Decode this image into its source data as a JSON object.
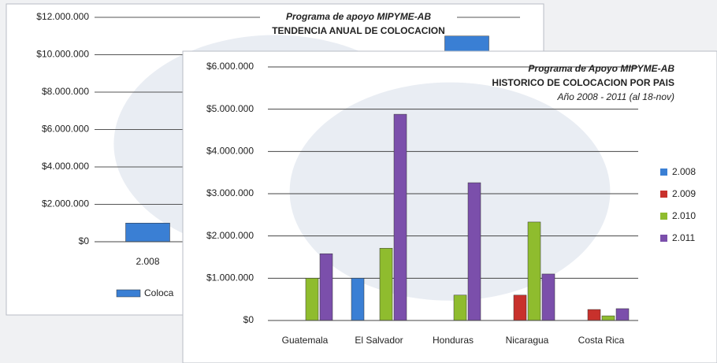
{
  "chart_data": [
    {
      "type": "bar",
      "title": "Programa de apoyo MIPYME-AB",
      "subtitle": "TENDENCIA ANUAL DE COLOCACION",
      "categories": [
        "2.008",
        null,
        null,
        null
      ],
      "series": [
        {
          "name": "Coloca",
          "color": "#3a7fd4",
          "values": [
            1000000,
            null,
            null,
            11000000
          ]
        }
      ],
      "ylim": [
        0,
        12000000
      ],
      "yticks": [
        {
          "value": 0,
          "label": "$0"
        },
        {
          "value": 2000000,
          "label": "$2.000.000"
        },
        {
          "value": 4000000,
          "label": "$4.000.000"
        },
        {
          "value": 6000000,
          "label": "$6.000.000"
        },
        {
          "value": 8000000,
          "label": "$8.000.000"
        },
        {
          "value": 10000000,
          "label": "$10.000.000"
        },
        {
          "value": 12000000,
          "label": "$12.000.000"
        }
      ],
      "grid": true,
      "legend": "bottom"
    },
    {
      "type": "bar",
      "title": "Programa de Apoyo MIPYME-AB",
      "subtitle": "HISTORICO DE COLOCACION POR PAIS",
      "annotation": "Año 2008 - 2011 (al 18-nov)",
      "categories": [
        "Guatemala",
        "El Salvador",
        "Honduras",
        "Nicaragua",
        "Costa Rica"
      ],
      "series": [
        {
          "name": "2.008",
          "color": "#3a7fd4",
          "values": [
            null,
            1000000,
            null,
            null,
            null
          ]
        },
        {
          "name": "2.009",
          "color": "#c8312c",
          "values": [
            null,
            null,
            null,
            600000,
            260000
          ]
        },
        {
          "name": "2.010",
          "color": "#8fbc2e",
          "values": [
            1000000,
            1710000,
            600000,
            2330000,
            110000
          ]
        },
        {
          "name": "2.011",
          "color": "#7b4fab",
          "values": [
            1580000,
            4880000,
            3260000,
            1100000,
            280000
          ]
        }
      ],
      "ylim": [
        0,
        6000000
      ],
      "yticks": [
        {
          "value": 0,
          "label": "$0"
        },
        {
          "value": 1000000,
          "label": "$1.000.000"
        },
        {
          "value": 2000000,
          "label": "$2.000.000"
        },
        {
          "value": 3000000,
          "label": "$3.000.000"
        },
        {
          "value": 4000000,
          "label": "$4.000.000"
        },
        {
          "value": 5000000,
          "label": "$5.000.000"
        },
        {
          "value": 6000000,
          "label": "$6.000.000"
        }
      ],
      "grid": true,
      "legend": "right"
    }
  ]
}
